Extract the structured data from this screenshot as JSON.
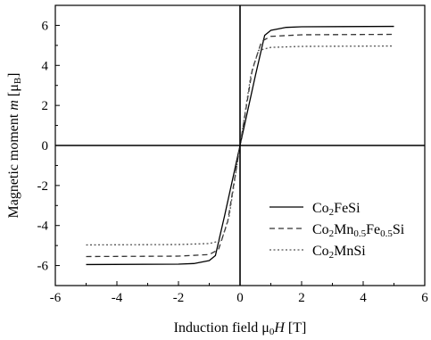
{
  "chart_data": {
    "type": "line",
    "xlabel": {
      "main": "Induction field  μ",
      "sub": "0",
      "italic": "H",
      "unit": " [T]"
    },
    "ylabel": {
      "main": "Magnetic moment  ",
      "italic": "m",
      "unit_open": " [μ",
      "sub": "B",
      "unit_close": "]"
    },
    "xlim": [
      -6,
      6
    ],
    "ylim": [
      -7,
      7
    ],
    "xticks": [
      -6,
      -4,
      -2,
      0,
      2,
      4,
      6
    ],
    "yticks": [
      -6,
      -4,
      -2,
      0,
      2,
      4,
      6
    ],
    "zero_lines": true,
    "grid": false,
    "legend_position": "right",
    "series": [
      {
        "name": "Co2FeSi",
        "name_parts": [
          {
            "t": "Co"
          },
          {
            "t": "2",
            "sub": true
          },
          {
            "t": "FeSi"
          }
        ],
        "style": "solid",
        "color": "#000000",
        "points": [
          [
            -5,
            -5.95
          ],
          [
            -2,
            -5.93
          ],
          [
            -1.5,
            -5.9
          ],
          [
            -1,
            -5.75
          ],
          [
            -0.8,
            -5.5
          ],
          [
            -0.5,
            -3.5
          ],
          [
            0,
            0
          ],
          [
            0.5,
            3.5
          ],
          [
            0.8,
            5.5
          ],
          [
            1,
            5.75
          ],
          [
            1.5,
            5.9
          ],
          [
            2,
            5.93
          ],
          [
            5,
            5.95
          ]
        ]
      },
      {
        "name": "Co2Mn0.5Fe0.5Si",
        "name_parts": [
          {
            "t": "Co"
          },
          {
            "t": "2",
            "sub": true
          },
          {
            "t": "Mn"
          },
          {
            "t": "0.5",
            "sub": true
          },
          {
            "t": "Fe"
          },
          {
            "t": "0.5",
            "sub": true
          },
          {
            "t": "Si"
          }
        ],
        "style": "dashed",
        "color": "#333333",
        "points": [
          [
            -5,
            -5.55
          ],
          [
            -2,
            -5.53
          ],
          [
            -1,
            -5.45
          ],
          [
            -0.7,
            -5.2
          ],
          [
            -0.4,
            -3.8
          ],
          [
            0,
            0
          ],
          [
            0.4,
            3.8
          ],
          [
            0.7,
            5.2
          ],
          [
            1,
            5.45
          ],
          [
            2,
            5.53
          ],
          [
            5,
            5.55
          ]
        ]
      },
      {
        "name": "Co2MnSi",
        "name_parts": [
          {
            "t": "Co"
          },
          {
            "t": "2",
            "sub": true
          },
          {
            "t": "MnSi"
          }
        ],
        "style": "dotted",
        "color": "#555555",
        "points": [
          [
            -5,
            -4.97
          ],
          [
            -2,
            -4.95
          ],
          [
            -1,
            -4.9
          ],
          [
            -0.6,
            -4.75
          ],
          [
            -0.35,
            -3.5
          ],
          [
            0,
            0
          ],
          [
            0.35,
            3.5
          ],
          [
            0.6,
            4.75
          ],
          [
            1,
            4.9
          ],
          [
            2,
            4.95
          ],
          [
            5,
            4.97
          ]
        ]
      }
    ]
  }
}
